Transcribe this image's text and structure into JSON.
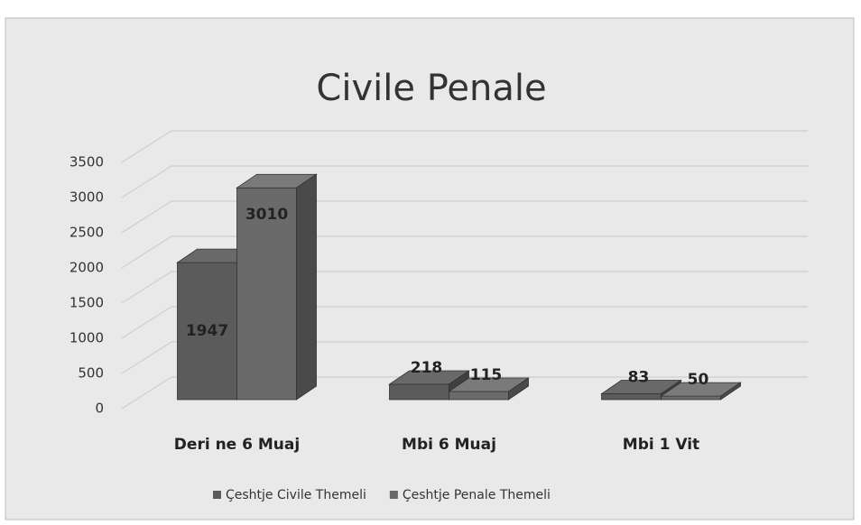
{
  "chart_data": {
    "type": "bar3d",
    "title": "Civile Penale",
    "categories": [
      "Deri ne 6 Muaj",
      "Mbi 6 Muaj",
      "Mbi 1 Vit"
    ],
    "series": [
      {
        "name": "Çeshtje Civile Themeli",
        "color": "#5b5b5b",
        "values": [
          1947,
          218,
          83
        ]
      },
      {
        "name": "Çeshtje Penale Themeli",
        "color": "#6a6a6a",
        "values": [
          3010,
          115,
          50
        ]
      }
    ],
    "ylim": [
      0,
      3500
    ],
    "yticks": [
      0,
      500,
      1000,
      1500,
      2000,
      2500,
      3000,
      3500
    ],
    "grid": true,
    "legend": "bottom"
  }
}
